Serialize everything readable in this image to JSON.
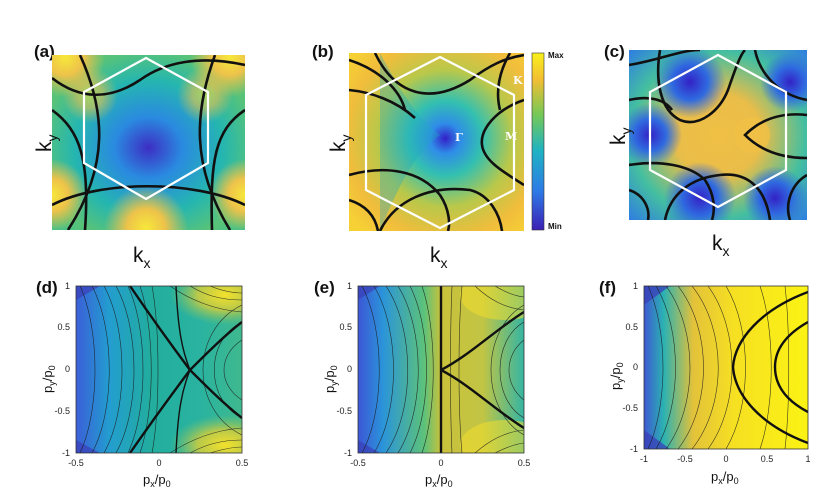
{
  "panels": {
    "a": {
      "label": "(a)"
    },
    "b": {
      "label": "(b)"
    },
    "c": {
      "label": "(c)"
    },
    "d": {
      "label": "(d)"
    },
    "e": {
      "label": "(e)"
    },
    "f": {
      "label": "(f)"
    }
  },
  "axes_top": {
    "k_main": "k",
    "kx_sub": "x",
    "ky_sub": "y"
  },
  "points": {
    "gamma": "Γ",
    "m": "M",
    "k": "K"
  },
  "colorbar": {
    "max": "Max",
    "min": "Min",
    "colors": [
      "#3b1fb5",
      "#2e7be6",
      "#20b3c2",
      "#74c957",
      "#f2be33",
      "#f9f01b"
    ]
  },
  "axes_bottom": {
    "x_main": "p",
    "x_sub": "x",
    "y_main": "p",
    "y_sub": "y",
    "over": "/p",
    "zero_sub": "0",
    "yticks": [
      "1",
      "0.5",
      "0",
      "-0.5",
      "-1"
    ],
    "xticks_de": [
      "-0.5",
      "0",
      "0.5"
    ],
    "xticks_f": [
      "-1",
      "-0.5",
      "0",
      "0.5",
      "1"
    ]
  }
}
